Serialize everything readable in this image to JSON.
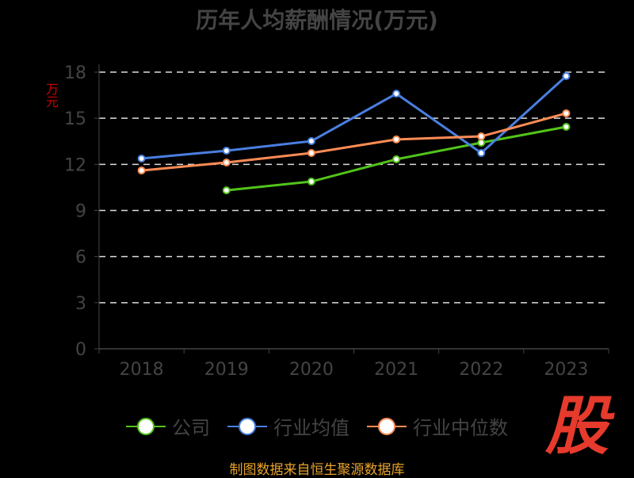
{
  "chart_data": {
    "type": "line",
    "title": "历年人均薪酬情况(万元)",
    "ylabel": "万元",
    "xlabel": "",
    "categories": [
      "2018",
      "2019",
      "2020",
      "2021",
      "2022",
      "2023"
    ],
    "ylim": [
      0,
      18
    ],
    "yticks": [
      0,
      3,
      6,
      9,
      12,
      15,
      18
    ],
    "grid": true,
    "legend_position": "bottom",
    "series": [
      {
        "name": "公司",
        "color": "#52c41a",
        "values": [
          null,
          10.31,
          10.88,
          12.33,
          13.41,
          14.44
        ]
      },
      {
        "name": "行业均值",
        "color": "#4a7fe0",
        "values": [
          12.38,
          12.89,
          13.51,
          16.6,
          12.74,
          17.74
        ]
      },
      {
        "name": "行业中位数",
        "color": "#ff8c55",
        "values": [
          11.6,
          12.12,
          12.74,
          13.62,
          13.82,
          15.32
        ]
      }
    ]
  },
  "logo_text": "股",
  "footer": "制图数据来自恒生聚源数据库"
}
